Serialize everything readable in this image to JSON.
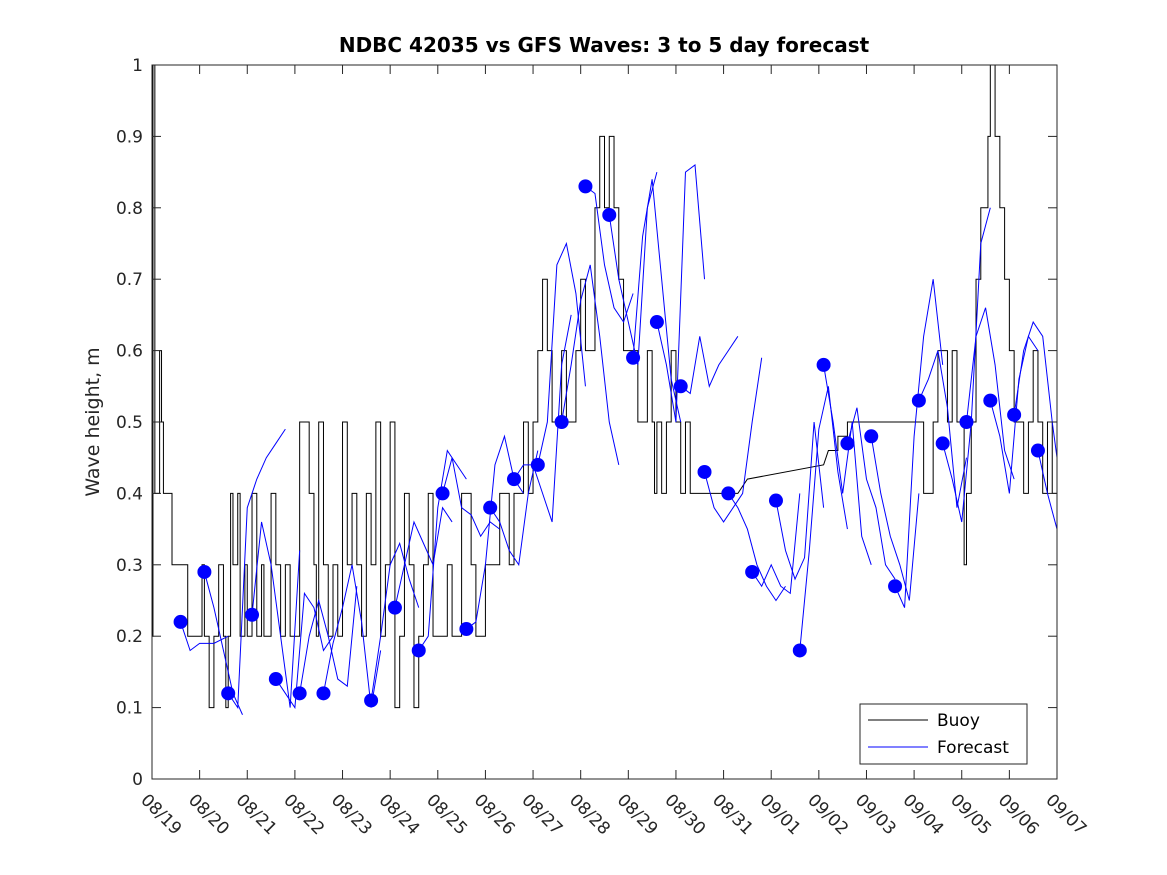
{
  "chart_data": {
    "type": "line",
    "title": "NDBC 42035 vs GFS Waves: 3 to 5 day forecast",
    "xlabel": "",
    "ylabel": "Wave height, m",
    "xlim_days": [
      0,
      19
    ],
    "ylim": [
      0,
      1
    ],
    "x_tick_labels": [
      "08/19",
      "08/20",
      "08/21",
      "08/22",
      "08/23",
      "08/24",
      "08/25",
      "08/26",
      "08/27",
      "08/28",
      "08/29",
      "08/30",
      "08/31",
      "09/01",
      "09/02",
      "09/03",
      "09/04",
      "09/05",
      "09/06",
      "09/07"
    ],
    "y_ticks": [
      0,
      0.1,
      0.2,
      0.3,
      0.4,
      0.5,
      0.6,
      0.7,
      0.8,
      0.9,
      1
    ],
    "y_tick_labels": [
      "0",
      "0.1",
      "0.2",
      "0.3",
      "0.4",
      "0.5",
      "0.6",
      "0.7",
      "0.8",
      "0.9",
      "1"
    ],
    "grid": false,
    "legend": {
      "position": "bottom-right",
      "entries": [
        {
          "label": "Buoy",
          "color": "#000000"
        },
        {
          "label": "Forecast",
          "color": "#0000ff"
        }
      ]
    },
    "colors": {
      "buoy": "#000000",
      "forecast": "#0000ff",
      "markers": "#0000ff"
    },
    "buoy": {
      "name": "Buoy",
      "x": [
        0,
        0.02,
        0.04,
        0.06,
        0.1,
        0.16,
        0.2,
        0.24,
        0.3,
        0.42,
        0.46,
        0.5,
        0.6,
        0.7,
        0.75,
        0.8,
        0.9,
        1.0,
        1.05,
        1.1,
        1.2,
        1.3,
        1.4,
        1.5,
        1.55,
        1.6,
        1.65,
        1.7,
        1.8,
        1.85,
        1.9,
        1.95,
        2.0,
        2.1,
        2.2,
        2.3,
        2.35,
        2.4,
        2.5,
        2.6,
        2.7,
        2.8,
        2.9,
        3.0,
        3.1,
        3.2,
        3.3,
        3.4,
        3.45,
        3.5,
        3.6,
        3.7,
        3.8,
        3.9,
        4.0,
        4.1,
        4.2,
        4.3,
        4.4,
        4.5,
        4.6,
        4.7,
        4.8,
        4.9,
        5.0,
        5.1,
        5.2,
        5.3,
        5.4,
        5.5,
        5.6,
        5.7,
        5.8,
        5.9,
        6.0,
        6.1,
        6.2,
        6.3,
        6.4,
        6.5,
        6.6,
        6.7,
        6.8,
        6.9,
        7.0,
        7.1,
        7.2,
        7.3,
        7.4,
        7.5,
        7.6,
        7.7,
        7.8,
        7.9,
        8.0,
        8.1,
        8.2,
        8.3,
        8.4,
        8.5,
        8.6,
        8.7,
        8.8,
        8.9,
        9.0,
        9.1,
        9.2,
        9.3,
        9.4,
        9.5,
        9.6,
        9.7,
        9.8,
        9.9,
        10.0,
        10.1,
        10.2,
        10.3,
        10.4,
        10.5,
        10.55,
        10.6,
        10.7,
        10.8,
        10.9,
        11.0,
        11.1,
        11.2,
        11.3,
        11.4,
        11.5,
        11.6,
        11.7,
        11.8,
        11.9,
        12.0,
        12.1,
        12.2,
        12.3,
        12.5,
        14.1,
        14.2,
        14.4,
        14.6,
        14.8,
        15.0,
        15.2,
        15.4,
        15.6,
        15.8,
        16.0,
        16.1,
        16.2,
        16.3,
        16.4,
        16.5,
        16.6,
        16.7,
        16.8,
        16.9,
        17.0,
        17.05,
        17.1,
        17.2,
        17.3,
        17.4,
        17.5,
        17.55,
        17.6,
        17.7,
        17.8,
        17.9,
        18.0,
        18.1,
        18.2,
        18.3,
        18.4,
        18.5,
        18.6,
        18.7,
        18.8,
        18.9,
        19.0
      ],
      "y": [
        0.2,
        1.0,
        1.0,
        0.4,
        0.4,
        0.6,
        0.5,
        0.4,
        0.4,
        0.3,
        0.3,
        0.3,
        0.3,
        0.3,
        0.2,
        0.2,
        0.2,
        0.2,
        0.3,
        0.2,
        0.1,
        0.2,
        0.3,
        0.2,
        0.1,
        0.2,
        0.4,
        0.3,
        0.4,
        0.2,
        0.2,
        0.3,
        0.2,
        0.4,
        0.2,
        0.3,
        0.2,
        0.2,
        0.4,
        0.3,
        0.2,
        0.3,
        0.2,
        0.2,
        0.5,
        0.5,
        0.4,
        0.3,
        0.2,
        0.5,
        0.3,
        0.2,
        0.3,
        0.2,
        0.5,
        0.3,
        0.4,
        0.3,
        0.2,
        0.4,
        0.3,
        0.5,
        0.2,
        0.3,
        0.5,
        0.1,
        0.2,
        0.4,
        0.3,
        0.1,
        0.2,
        0.3,
        0.4,
        0.2,
        0.2,
        0.2,
        0.3,
        0.2,
        0.2,
        0.4,
        0.4,
        0.3,
        0.2,
        0.2,
        0.3,
        0.3,
        0.3,
        0.4,
        0.4,
        0.3,
        0.4,
        0.4,
        0.5,
        0.4,
        0.5,
        0.6,
        0.7,
        0.6,
        0.5,
        0.5,
        0.6,
        0.5,
        0.5,
        0.6,
        0.7,
        0.6,
        0.6,
        0.8,
        0.9,
        0.8,
        0.9,
        0.8,
        0.7,
        0.6,
        0.6,
        0.6,
        0.5,
        0.5,
        0.6,
        0.5,
        0.4,
        0.5,
        0.4,
        0.5,
        0.6,
        0.5,
        0.4,
        0.5,
        0.4,
        0.4,
        0.4,
        0.4,
        0.4,
        0.4,
        0.4,
        0.4,
        0.4,
        0.4,
        0.4,
        0.42,
        0.44,
        0.46,
        0.48,
        0.5,
        0.5,
        0.5,
        0.5,
        0.5,
        0.5,
        0.5,
        0.5,
        0.5,
        0.4,
        0.4,
        0.5,
        0.6,
        0.6,
        0.5,
        0.6,
        0.5,
        0.5,
        0.3,
        0.4,
        0.5,
        0.7,
        0.8,
        0.8,
        0.9,
        1.0,
        0.9,
        0.8,
        0.7,
        0.6,
        0.5,
        0.5,
        0.4,
        0.5,
        0.6,
        0.5,
        0.4,
        0.5,
        0.4,
        0.4
      ]
    },
    "forecast_points": {
      "x": [
        0.6,
        1.1,
        1.6,
        2.1,
        2.6,
        3.1,
        3.6,
        4.6,
        5.1,
        5.6,
        6.1,
        6.6,
        7.1,
        7.6,
        8.1,
        8.6,
        9.1,
        9.6,
        10.1,
        10.6,
        11.1,
        11.6,
        12.1,
        12.6,
        13.1,
        13.6,
        14.1,
        14.6,
        15.1,
        15.6,
        16.1,
        16.6,
        17.1,
        17.6,
        18.1,
        18.6
      ],
      "y": [
        0.22,
        0.29,
        0.12,
        0.23,
        0.14,
        0.12,
        0.12,
        0.11,
        0.24,
        0.18,
        0.4,
        0.21,
        0.38,
        0.42,
        0.44,
        0.5,
        0.83,
        0.79,
        0.59,
        0.64,
        0.55,
        0.43,
        0.4,
        0.29,
        0.39,
        0.18,
        0.58,
        0.47,
        0.48,
        0.27,
        0.53,
        0.47,
        0.5,
        0.53,
        0.51,
        0.46
      ]
    },
    "forecast_series": [
      {
        "x": [
          0.6,
          0.8,
          1.0,
          1.3,
          1.6
        ],
        "y": [
          0.22,
          0.18,
          0.19,
          0.19,
          0.2
        ]
      },
      {
        "x": [
          1.1,
          1.3,
          1.5,
          1.7,
          1.9
        ],
        "y": [
          0.29,
          0.24,
          0.18,
          0.12,
          0.09
        ]
      },
      {
        "x": [
          1.6,
          1.8,
          2.0,
          2.2,
          2.4,
          2.6,
          2.8
        ],
        "y": [
          0.12,
          0.1,
          0.38,
          0.42,
          0.45,
          0.47,
          0.49
        ]
      },
      {
        "x": [
          2.1,
          2.3,
          2.5,
          2.7,
          2.9,
          3.1
        ],
        "y": [
          0.23,
          0.36,
          0.3,
          0.2,
          0.1,
          0.32
        ]
      },
      {
        "x": [
          2.6,
          2.8,
          3.0,
          3.2,
          3.4,
          3.6,
          3.8
        ],
        "y": [
          0.14,
          0.12,
          0.1,
          0.26,
          0.24,
          0.18,
          0.2
        ]
      },
      {
        "x": [
          3.1,
          3.3,
          3.5,
          3.7,
          3.9,
          4.1,
          4.3
        ],
        "y": [
          0.12,
          0.2,
          0.25,
          0.2,
          0.14,
          0.13,
          0.27
        ]
      },
      {
        "x": [
          3.6,
          3.8,
          4.0,
          4.2,
          4.4,
          4.6,
          4.8
        ],
        "y": [
          0.12,
          0.19,
          0.24,
          0.3,
          0.22,
          0.1,
          0.18
        ]
      },
      {
        "x": [
          4.6,
          4.8,
          5.0,
          5.2,
          5.4,
          5.6
        ],
        "y": [
          0.11,
          0.2,
          0.3,
          0.33,
          0.28,
          0.24
        ]
      },
      {
        "x": [
          5.1,
          5.3,
          5.5,
          5.7,
          5.9,
          6.1,
          6.3
        ],
        "y": [
          0.24,
          0.3,
          0.36,
          0.33,
          0.3,
          0.38,
          0.36
        ]
      },
      {
        "x": [
          5.6,
          5.8,
          6.0,
          6.2,
          6.4,
          6.6
        ],
        "y": [
          0.18,
          0.2,
          0.38,
          0.46,
          0.44,
          0.42
        ]
      },
      {
        "x": [
          6.1,
          6.3,
          6.5,
          6.7,
          6.9,
          7.1,
          7.3
        ],
        "y": [
          0.4,
          0.45,
          0.38,
          0.37,
          0.34,
          0.36,
          0.35
        ]
      },
      {
        "x": [
          6.6,
          6.8,
          7.0,
          7.2,
          7.4,
          7.6,
          7.8
        ],
        "y": [
          0.21,
          0.22,
          0.3,
          0.44,
          0.48,
          0.42,
          0.4
        ]
      },
      {
        "x": [
          7.1,
          7.3,
          7.5,
          7.7,
          7.9,
          8.1
        ],
        "y": [
          0.38,
          0.36,
          0.32,
          0.3,
          0.4,
          0.46
        ]
      },
      {
        "x": [
          7.6,
          7.8,
          8.0,
          8.2,
          8.4,
          8.6,
          8.8
        ],
        "y": [
          0.42,
          0.44,
          0.44,
          0.4,
          0.36,
          0.58,
          0.65
        ]
      },
      {
        "x": [
          8.1,
          8.3,
          8.5,
          8.7,
          8.9,
          9.1
        ],
        "y": [
          0.44,
          0.5,
          0.72,
          0.75,
          0.68,
          0.55
        ]
      },
      {
        "x": [
          8.6,
          8.8,
          9.0,
          9.2,
          9.4,
          9.6,
          9.8
        ],
        "y": [
          0.5,
          0.58,
          0.67,
          0.72,
          0.62,
          0.5,
          0.44
        ]
      },
      {
        "x": [
          9.1,
          9.3,
          9.5,
          9.7,
          9.9,
          10.1
        ],
        "y": [
          0.83,
          0.82,
          0.72,
          0.66,
          0.64,
          0.68
        ]
      },
      {
        "x": [
          9.6,
          9.8,
          10.0,
          10.2,
          10.4,
          10.6
        ],
        "y": [
          0.79,
          0.7,
          0.64,
          0.58,
          0.8,
          0.85
        ]
      },
      {
        "x": [
          10.1,
          10.3,
          10.5,
          10.7,
          10.9,
          11.1
        ],
        "y": [
          0.59,
          0.76,
          0.84,
          0.7,
          0.56,
          0.5
        ]
      },
      {
        "x": [
          10.6,
          10.8,
          11.0,
          11.2,
          11.4,
          11.6
        ],
        "y": [
          0.64,
          0.58,
          0.5,
          0.85,
          0.86,
          0.7
        ]
      },
      {
        "x": [
          11.1,
          11.3,
          11.5,
          11.7,
          11.9,
          12.1,
          12.3
        ],
        "y": [
          0.55,
          0.54,
          0.62,
          0.55,
          0.58,
          0.6,
          0.62
        ]
      },
      {
        "x": [
          11.6,
          11.8,
          12.0,
          12.2,
          12.4,
          12.6,
          12.8
        ],
        "y": [
          0.43,
          0.38,
          0.36,
          0.38,
          0.4,
          0.5,
          0.59
        ]
      },
      {
        "x": [
          12.1,
          12.3,
          12.5,
          12.7,
          12.9,
          13.1,
          13.3
        ],
        "y": [
          0.4,
          0.38,
          0.35,
          0.3,
          0.27,
          0.25,
          0.27
        ]
      },
      {
        "x": [
          12.6,
          12.8,
          13.0,
          13.2,
          13.4,
          13.6
        ],
        "y": [
          0.29,
          0.27,
          0.3,
          0.27,
          0.26,
          0.4
        ]
      },
      {
        "x": [
          13.1,
          13.3,
          13.5,
          13.7,
          13.9,
          14.1
        ],
        "y": [
          0.39,
          0.32,
          0.28,
          0.31,
          0.5,
          0.38
        ]
      },
      {
        "x": [
          13.6,
          13.8,
          14.0,
          14.2,
          14.4,
          14.6
        ],
        "y": [
          0.18,
          0.32,
          0.49,
          0.55,
          0.43,
          0.35
        ]
      },
      {
        "x": [
          14.1,
          14.3,
          14.5,
          14.7,
          14.9,
          15.1
        ],
        "y": [
          0.58,
          0.5,
          0.4,
          0.5,
          0.34,
          0.3
        ]
      },
      {
        "x": [
          14.6,
          14.8,
          15.0,
          15.2,
          15.4,
          15.6
        ],
        "y": [
          0.47,
          0.52,
          0.42,
          0.38,
          0.3,
          0.28
        ]
      },
      {
        "x": [
          15.1,
          15.3,
          15.5,
          15.7,
          15.9,
          16.1
        ],
        "y": [
          0.48,
          0.4,
          0.34,
          0.3,
          0.25,
          0.4
        ]
      },
      {
        "x": [
          15.6,
          15.8,
          16.0,
          16.2,
          16.4,
          16.6
        ],
        "y": [
          0.27,
          0.24,
          0.48,
          0.62,
          0.7,
          0.58
        ]
      },
      {
        "x": [
          16.1,
          16.3,
          16.5,
          16.7,
          16.9,
          17.1
        ],
        "y": [
          0.53,
          0.56,
          0.6,
          0.52,
          0.38,
          0.45
        ]
      },
      {
        "x": [
          16.6,
          16.8,
          17.0,
          17.2,
          17.4,
          17.6
        ],
        "y": [
          0.47,
          0.42,
          0.36,
          0.5,
          0.75,
          0.8
        ]
      },
      {
        "x": [
          17.1,
          17.3,
          17.5,
          17.7,
          17.9,
          18.1
        ],
        "y": [
          0.5,
          0.62,
          0.66,
          0.58,
          0.46,
          0.42
        ]
      },
      {
        "x": [
          17.6,
          17.8,
          18.0,
          18.2,
          18.4,
          18.6
        ],
        "y": [
          0.53,
          0.48,
          0.4,
          0.56,
          0.62,
          0.6
        ]
      },
      {
        "x": [
          18.1,
          18.3,
          18.5,
          18.7,
          18.9,
          19.0
        ],
        "y": [
          0.51,
          0.6,
          0.64,
          0.62,
          0.5,
          0.45
        ]
      },
      {
        "x": [
          18.6,
          18.8,
          19.0
        ],
        "y": [
          0.46,
          0.4,
          0.35
        ]
      }
    ]
  }
}
